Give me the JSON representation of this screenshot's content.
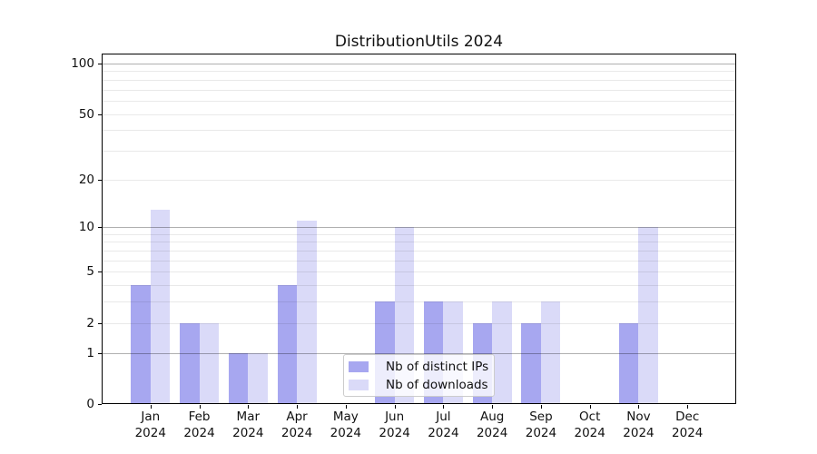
{
  "chart_data": {
    "type": "bar",
    "title": "DistributionUtils 2024",
    "categories": [
      "Jan 2024",
      "Feb 2024",
      "Mar 2024",
      "Apr 2024",
      "May 2024",
      "Jun 2024",
      "Jul 2024",
      "Aug 2024",
      "Sep 2024",
      "Oct 2024",
      "Nov 2024",
      "Dec 2024"
    ],
    "series": [
      {
        "name": "Nb of distinct IPs",
        "color": "#a7a7f0",
        "values": [
          4,
          2,
          1,
          4,
          0,
          3,
          3,
          2,
          2,
          0,
          2,
          0
        ]
      },
      {
        "name": "Nb of downloads",
        "color": "#dadaf8",
        "values": [
          13,
          2,
          1,
          11,
          0,
          10,
          3,
          3,
          3,
          0,
          10,
          0
        ]
      }
    ],
    "yscale": "log1p",
    "ylim": [
      0,
      113
    ],
    "ytick_values": [
      0,
      1,
      2,
      5,
      10,
      20,
      50,
      100
    ],
    "gridlines": {
      "major": [
        1,
        10,
        100
      ],
      "minor": [
        2,
        3,
        4,
        5,
        6,
        7,
        8,
        9,
        20,
        30,
        40,
        50,
        60,
        70,
        80,
        90
      ]
    },
    "legend_position": "lower center",
    "grid": true,
    "colors": {
      "major_grid": "#b0b0b0",
      "minor_grid": "#e9e9e9",
      "spine": "#000000",
      "background": "#ffffff"
    }
  }
}
